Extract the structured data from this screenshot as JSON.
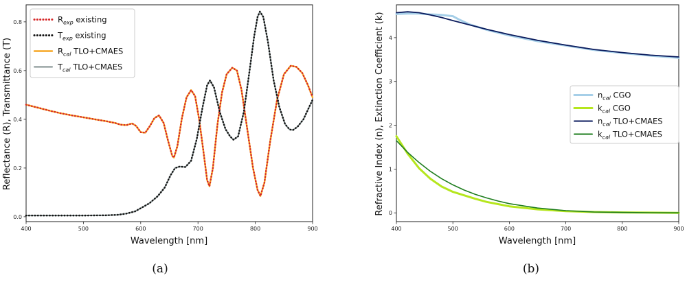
{
  "chart_data": [
    {
      "type": "line",
      "caption": "(a)",
      "xlabel": "Wavelength [nm]",
      "ylabel": "Reflectance (R), Transmittance (T)",
      "xlim": [
        400,
        900
      ],
      "ylim": [
        -0.02,
        0.87
      ],
      "x_ticks": [
        400,
        500,
        600,
        700,
        800,
        900
      ],
      "y_ticks": [
        0.0,
        0.2,
        0.4,
        0.6,
        0.8
      ],
      "legend_position": "top-left",
      "series": [
        {
          "name": "R_exp existing",
          "name_main": "R",
          "name_sub": "exp",
          "name_rest": " existing",
          "color": "#d62728",
          "style": "dotted",
          "width": 2.6,
          "points": [
            [
              400,
              0.46
            ],
            [
              420,
              0.448
            ],
            [
              440,
              0.436
            ],
            [
              460,
              0.425
            ],
            [
              480,
              0.416
            ],
            [
              500,
              0.408
            ],
            [
              520,
              0.4
            ],
            [
              540,
              0.392
            ],
            [
              555,
              0.385
            ],
            [
              565,
              0.378
            ],
            [
              575,
              0.376
            ],
            [
              585,
              0.383
            ],
            [
              592,
              0.373
            ],
            [
              600,
              0.347
            ],
            [
              608,
              0.345
            ],
            [
              616,
              0.372
            ],
            [
              624,
              0.405
            ],
            [
              632,
              0.416
            ],
            [
              640,
              0.385
            ],
            [
              648,
              0.31
            ],
            [
              655,
              0.25
            ],
            [
              658,
              0.243
            ],
            [
              664,
              0.29
            ],
            [
              672,
              0.405
            ],
            [
              680,
              0.49
            ],
            [
              688,
              0.52
            ],
            [
              695,
              0.495
            ],
            [
              702,
              0.4
            ],
            [
              710,
              0.26
            ],
            [
              716,
              0.15
            ],
            [
              720,
              0.125
            ],
            [
              726,
              0.2
            ],
            [
              734,
              0.38
            ],
            [
              742,
              0.51
            ],
            [
              750,
              0.585
            ],
            [
              760,
              0.612
            ],
            [
              768,
              0.6
            ],
            [
              776,
              0.52
            ],
            [
              786,
              0.36
            ],
            [
              796,
              0.2
            ],
            [
              804,
              0.11
            ],
            [
              809,
              0.085
            ],
            [
              816,
              0.14
            ],
            [
              826,
              0.31
            ],
            [
              838,
              0.48
            ],
            [
              850,
              0.585
            ],
            [
              862,
              0.62
            ],
            [
              872,
              0.615
            ],
            [
              882,
              0.59
            ],
            [
              892,
              0.54
            ],
            [
              900,
              0.49
            ]
          ]
        },
        {
          "name": "T_exp existing",
          "name_main": "T",
          "name_sub": "exp",
          "name_rest": " existing",
          "color": "#111111",
          "style": "dotted",
          "width": 2.6,
          "points": [
            [
              400,
              0.005
            ],
            [
              450,
              0.005
            ],
            [
              500,
              0.005
            ],
            [
              540,
              0.006
            ],
            [
              560,
              0.008
            ],
            [
              575,
              0.013
            ],
            [
              590,
              0.022
            ],
            [
              600,
              0.035
            ],
            [
              615,
              0.055
            ],
            [
              630,
              0.085
            ],
            [
              642,
              0.12
            ],
            [
              652,
              0.17
            ],
            [
              660,
              0.2
            ],
            [
              668,
              0.206
            ],
            [
              678,
              0.204
            ],
            [
              688,
              0.23
            ],
            [
              698,
              0.32
            ],
            [
              708,
              0.45
            ],
            [
              716,
              0.54
            ],
            [
              721,
              0.56
            ],
            [
              728,
              0.53
            ],
            [
              738,
              0.43
            ],
            [
              748,
              0.36
            ],
            [
              756,
              0.33
            ],
            [
              762,
              0.316
            ],
            [
              770,
              0.33
            ],
            [
              780,
              0.43
            ],
            [
              790,
              0.6
            ],
            [
              798,
              0.74
            ],
            [
              804,
              0.82
            ],
            [
              808,
              0.842
            ],
            [
              814,
              0.82
            ],
            [
              822,
              0.72
            ],
            [
              832,
              0.56
            ],
            [
              842,
              0.45
            ],
            [
              852,
              0.38
            ],
            [
              860,
              0.358
            ],
            [
              866,
              0.356
            ],
            [
              874,
              0.37
            ],
            [
              884,
              0.4
            ],
            [
              892,
              0.44
            ],
            [
              900,
              0.48
            ]
          ]
        },
        {
          "name": "R_cal TLO+CMAES",
          "name_main": "R",
          "name_sub": "cal",
          "name_rest": " TLO+CMAES",
          "color": "#f5a623",
          "style": "solid",
          "width": 2.4,
          "ref": 0
        },
        {
          "name": "T_cal TLO+CMAES",
          "name_main": "T",
          "name_sub": "cal",
          "name_rest": " TLO+CMAES",
          "color": "#7f8c8d",
          "style": "solid",
          "width": 2.0,
          "ref": 1
        }
      ]
    },
    {
      "type": "line",
      "caption": "(b)",
      "xlabel": "Wavelength [nm]",
      "ylabel": "Refractive Index (n), Extinction Coefficient (k)",
      "xlim": [
        400,
        900
      ],
      "ylim": [
        -0.2,
        4.75
      ],
      "x_ticks": [
        400,
        500,
        600,
        700,
        800,
        900
      ],
      "y_ticks": [
        0,
        1,
        2,
        3,
        4
      ],
      "legend_position": "center-right",
      "series": [
        {
          "name": "n_cal CGO",
          "name_main": "n",
          "name_sub": "cal",
          "name_rest": " CGO",
          "color": "#a6cfe8",
          "style": "solid",
          "width": 3.0,
          "points": [
            [
              400,
              4.54
            ],
            [
              420,
              4.55
            ],
            [
              440,
              4.55
            ],
            [
              460,
              4.53
            ],
            [
              480,
              4.52
            ],
            [
              500,
              4.49
            ],
            [
              510,
              4.42
            ],
            [
              530,
              4.3
            ],
            [
              560,
              4.18
            ],
            [
              600,
              4.05
            ],
            [
              650,
              3.92
            ],
            [
              700,
              3.82
            ],
            [
              750,
              3.72
            ],
            [
              800,
              3.65
            ],
            [
              850,
              3.59
            ],
            [
              900,
              3.54
            ]
          ]
        },
        {
          "name": "k_cal CGO",
          "name_main": "k",
          "name_sub": "cal",
          "name_rest": " CGO",
          "color": "#b5e61d",
          "style": "solid",
          "width": 3.0,
          "points": [
            [
              400,
              1.75
            ],
            [
              420,
              1.35
            ],
            [
              440,
              1.02
            ],
            [
              460,
              0.78
            ],
            [
              480,
              0.6
            ],
            [
              500,
              0.48
            ],
            [
              520,
              0.4
            ],
            [
              540,
              0.32
            ],
            [
              560,
              0.25
            ],
            [
              580,
              0.2
            ],
            [
              600,
              0.15
            ],
            [
              650,
              0.08
            ],
            [
              700,
              0.04
            ],
            [
              750,
              0.02
            ],
            [
              800,
              0.01
            ],
            [
              850,
              0.005
            ],
            [
              900,
              0.0
            ]
          ]
        },
        {
          "name": "n_cal TLO+CMAES",
          "name_main": "n",
          "name_sub": "cal",
          "name_rest": " TLO+CMAES",
          "color": "#0a1a5c",
          "style": "solid",
          "width": 1.8,
          "points": [
            [
              400,
              4.57
            ],
            [
              420,
              4.59
            ],
            [
              440,
              4.57
            ],
            [
              460,
              4.52
            ],
            [
              480,
              4.46
            ],
            [
              500,
              4.39
            ],
            [
              530,
              4.29
            ],
            [
              560,
              4.19
            ],
            [
              600,
              4.07
            ],
            [
              650,
              3.94
            ],
            [
              700,
              3.83
            ],
            [
              750,
              3.73
            ],
            [
              800,
              3.66
            ],
            [
              850,
              3.6
            ],
            [
              900,
              3.56
            ]
          ]
        },
        {
          "name": "k_cal TLO+CMAES",
          "name_main": "k",
          "name_sub": "cal",
          "name_rest": " TLO+CMAES",
          "color": "#1e7d1e",
          "style": "solid",
          "width": 1.6,
          "points": [
            [
              400,
              1.65
            ],
            [
              420,
              1.38
            ],
            [
              440,
              1.15
            ],
            [
              460,
              0.95
            ],
            [
              480,
              0.78
            ],
            [
              500,
              0.64
            ],
            [
              520,
              0.52
            ],
            [
              540,
              0.42
            ],
            [
              560,
              0.34
            ],
            [
              580,
              0.27
            ],
            [
              600,
              0.21
            ],
            [
              650,
              0.11
            ],
            [
              700,
              0.05
            ],
            [
              750,
              0.02
            ],
            [
              800,
              0.01
            ],
            [
              850,
              0.004
            ],
            [
              900,
              0.0
            ]
          ]
        }
      ]
    }
  ]
}
